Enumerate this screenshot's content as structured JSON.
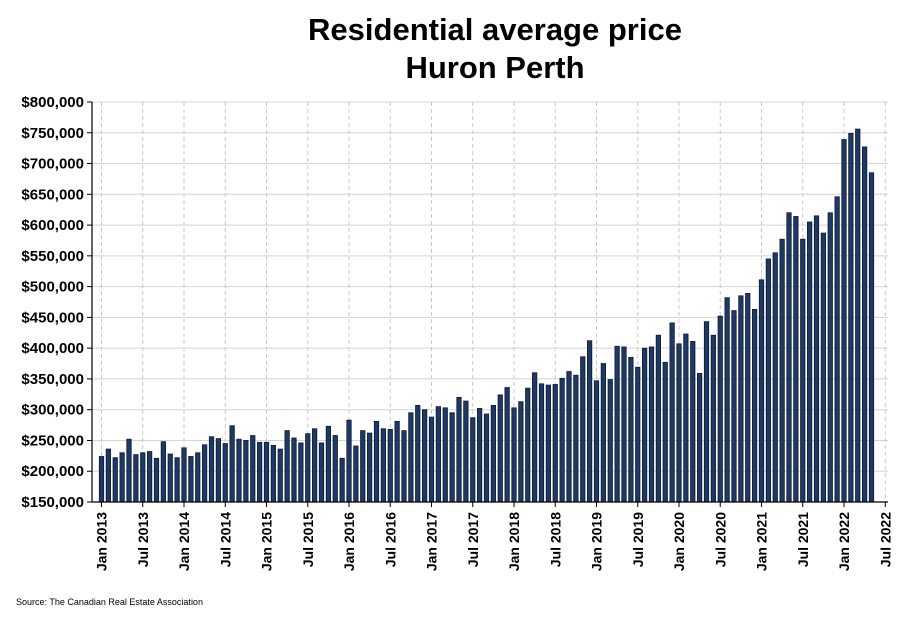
{
  "chart_data": {
    "type": "bar",
    "title": "Residential average price",
    "subtitle": "Huron Perth",
    "source": "Source: The Canadian Real Estate Association",
    "xlabel": "",
    "ylabel": "",
    "ylim": [
      150000,
      800000
    ],
    "y_ticks": [
      {
        "value": 150000,
        "label": "$150,000"
      },
      {
        "value": 200000,
        "label": "$200,000"
      },
      {
        "value": 250000,
        "label": "$250,000"
      },
      {
        "value": 300000,
        "label": "$300,000"
      },
      {
        "value": 350000,
        "label": "$350,000"
      },
      {
        "value": 400000,
        "label": "$400,000"
      },
      {
        "value": 450000,
        "label": "$450,000"
      },
      {
        "value": 500000,
        "label": "$500,000"
      },
      {
        "value": 550000,
        "label": "$550,000"
      },
      {
        "value": 600000,
        "label": "$600,000"
      },
      {
        "value": 650000,
        "label": "$650,000"
      },
      {
        "value": 700000,
        "label": "$700,000"
      },
      {
        "value": 750000,
        "label": "$750,000"
      },
      {
        "value": 800000,
        "label": "$800,000"
      }
    ],
    "x_ticks": [
      {
        "index": 0,
        "label": "Jan 2013"
      },
      {
        "index": 6,
        "label": "Jul 2013"
      },
      {
        "index": 12,
        "label": "Jan 2014"
      },
      {
        "index": 18,
        "label": "Jul 2014"
      },
      {
        "index": 24,
        "label": "Jan 2015"
      },
      {
        "index": 30,
        "label": "Jul 2015"
      },
      {
        "index": 36,
        "label": "Jan 2016"
      },
      {
        "index": 42,
        "label": "Jul 2016"
      },
      {
        "index": 48,
        "label": "Jan 2017"
      },
      {
        "index": 54,
        "label": "Jul 2017"
      },
      {
        "index": 60,
        "label": "Jan 2018"
      },
      {
        "index": 66,
        "label": "Jul 2018"
      },
      {
        "index": 72,
        "label": "Jan 2019"
      },
      {
        "index": 78,
        "label": "Jul 2019"
      },
      {
        "index": 84,
        "label": "Jan 2020"
      },
      {
        "index": 90,
        "label": "Jul 2020"
      },
      {
        "index": 96,
        "label": "Jan 2021"
      },
      {
        "index": 102,
        "label": "Jul 2021"
      },
      {
        "index": 108,
        "label": "Jan 2022"
      },
      {
        "index": 114,
        "label": "Jul 2022"
      }
    ],
    "series": [
      {
        "name": "Residential average price",
        "start": "Jan 2013",
        "color": "#1f3864",
        "values": [
          224000,
          236000,
          222000,
          230000,
          252000,
          227000,
          230000,
          232000,
          221000,
          248000,
          228000,
          222000,
          238000,
          224000,
          230000,
          243000,
          256000,
          253000,
          245000,
          274000,
          252000,
          250000,
          258000,
          247000,
          247000,
          242000,
          236000,
          266000,
          254000,
          246000,
          261000,
          269000,
          246000,
          273000,
          258000,
          221000,
          283000,
          241000,
          266000,
          262000,
          281000,
          269000,
          268000,
          281000,
          266000,
          295000,
          307000,
          300000,
          288000,
          305000,
          303000,
          295000,
          320000,
          314000,
          287000,
          302000,
          293000,
          307000,
          324000,
          336000,
          303000,
          313000,
          335000,
          360000,
          342000,
          340000,
          341000,
          351000,
          362000,
          356000,
          386000,
          412000,
          347000,
          375000,
          349000,
          403000,
          402000,
          385000,
          369000,
          400000,
          402000,
          421000,
          377000,
          441000,
          407000,
          423000,
          411000,
          359000,
          443000,
          421000,
          452000,
          482000,
          461000,
          485000,
          489000,
          463000,
          511000,
          545000,
          555000,
          577000,
          620000,
          614000,
          577000,
          605000,
          615000,
          587000,
          620000,
          646000,
          739000,
          749000,
          756000,
          727000,
          685000
        ]
      }
    ]
  }
}
